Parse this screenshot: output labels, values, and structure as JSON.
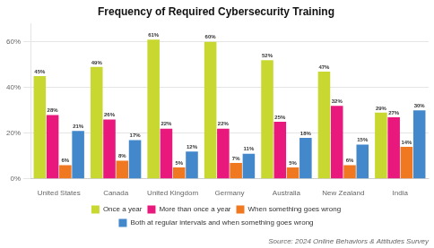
{
  "chart_data": {
    "type": "bar",
    "title": "Frequency of Required Cybersecurity Training",
    "source": "Source: 2024 Online Behaviors & Attitudes Survey",
    "categories": [
      "United States",
      "Canada",
      "United Kingdom",
      "Germany",
      "Australia",
      "New Zealand",
      "India"
    ],
    "series": [
      {
        "name": "Once a year",
        "color": "#c8d830",
        "values": [
          45,
          49,
          61,
          60,
          52,
          47,
          29
        ],
        "value_labels": [
          "45%",
          "49%",
          "61%",
          "60%",
          "52%",
          "47%",
          "29%"
        ]
      },
      {
        "name": "More than once a year",
        "color": "#e8187c",
        "values": [
          28,
          26,
          22,
          22,
          25,
          32,
          27
        ],
        "value_labels": [
          "28%",
          "26%",
          "22%",
          "22%",
          "25%",
          "32%",
          "27%"
        ]
      },
      {
        "name": "When something goes wrong",
        "color": "#f07820",
        "values": [
          6,
          8,
          5,
          7,
          5,
          6,
          14
        ],
        "value_labels": [
          "6%",
          "8%",
          "5%",
          "7%",
          "5%",
          "6%",
          "14%"
        ]
      },
      {
        "name": "Both at regular intervals and when something goes wrong",
        "color": "#4488cc",
        "values": [
          21,
          17,
          12,
          11,
          18,
          15,
          30
        ],
        "value_labels": [
          "21%",
          "17%",
          "12%",
          "11%",
          "18%",
          "15%",
          "30%"
        ]
      }
    ],
    "ylim": [
      0,
      68
    ],
    "yticks": [
      {
        "value": 0,
        "label": "0%"
      },
      {
        "value": 20,
        "label": "20%"
      },
      {
        "value": 40,
        "label": "40%"
      },
      {
        "value": 60,
        "label": "60%"
      }
    ],
    "grid": true,
    "legend": "bottom",
    "data_labels": true
  }
}
